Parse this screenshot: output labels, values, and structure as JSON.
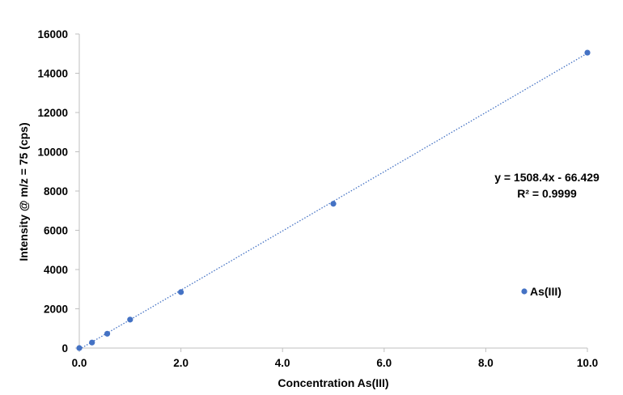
{
  "chart_data": {
    "type": "scatter",
    "title": "",
    "xlabel": "Concentration As(III)",
    "ylabel": "Intensity @ m/z = 75 (cps)",
    "xlim": [
      0,
      10
    ],
    "ylim": [
      0,
      16000
    ],
    "x_ticks": [
      0,
      2,
      4,
      6,
      8,
      10
    ],
    "x_tick_labels": [
      "0.0",
      "2.0",
      "4.0",
      "6.0",
      "8.0",
      "10.0"
    ],
    "y_ticks": [
      0,
      2000,
      4000,
      6000,
      8000,
      10000,
      12000,
      14000,
      16000
    ],
    "y_tick_labels": [
      "0",
      "2000",
      "4000",
      "6000",
      "8000",
      "10000",
      "12000",
      "14000",
      "16000"
    ],
    "grid": false,
    "legend_position": "lower-right",
    "series": [
      {
        "name": "As(III)",
        "color": "#4472C4",
        "x": [
          0,
          0.25,
          0.55,
          1.0,
          2.0,
          5.0,
          10.0
        ],
        "y": [
          0,
          280,
          730,
          1450,
          2850,
          7350,
          15050
        ]
      }
    ],
    "trendline": {
      "type": "linear",
      "slope": 1508.4,
      "intercept": -66.429,
      "style": "dotted",
      "color": "#4472C4",
      "equation_label": "y = 1508.4x - 66.429",
      "r2_label": "R² = 0.9999"
    }
  }
}
